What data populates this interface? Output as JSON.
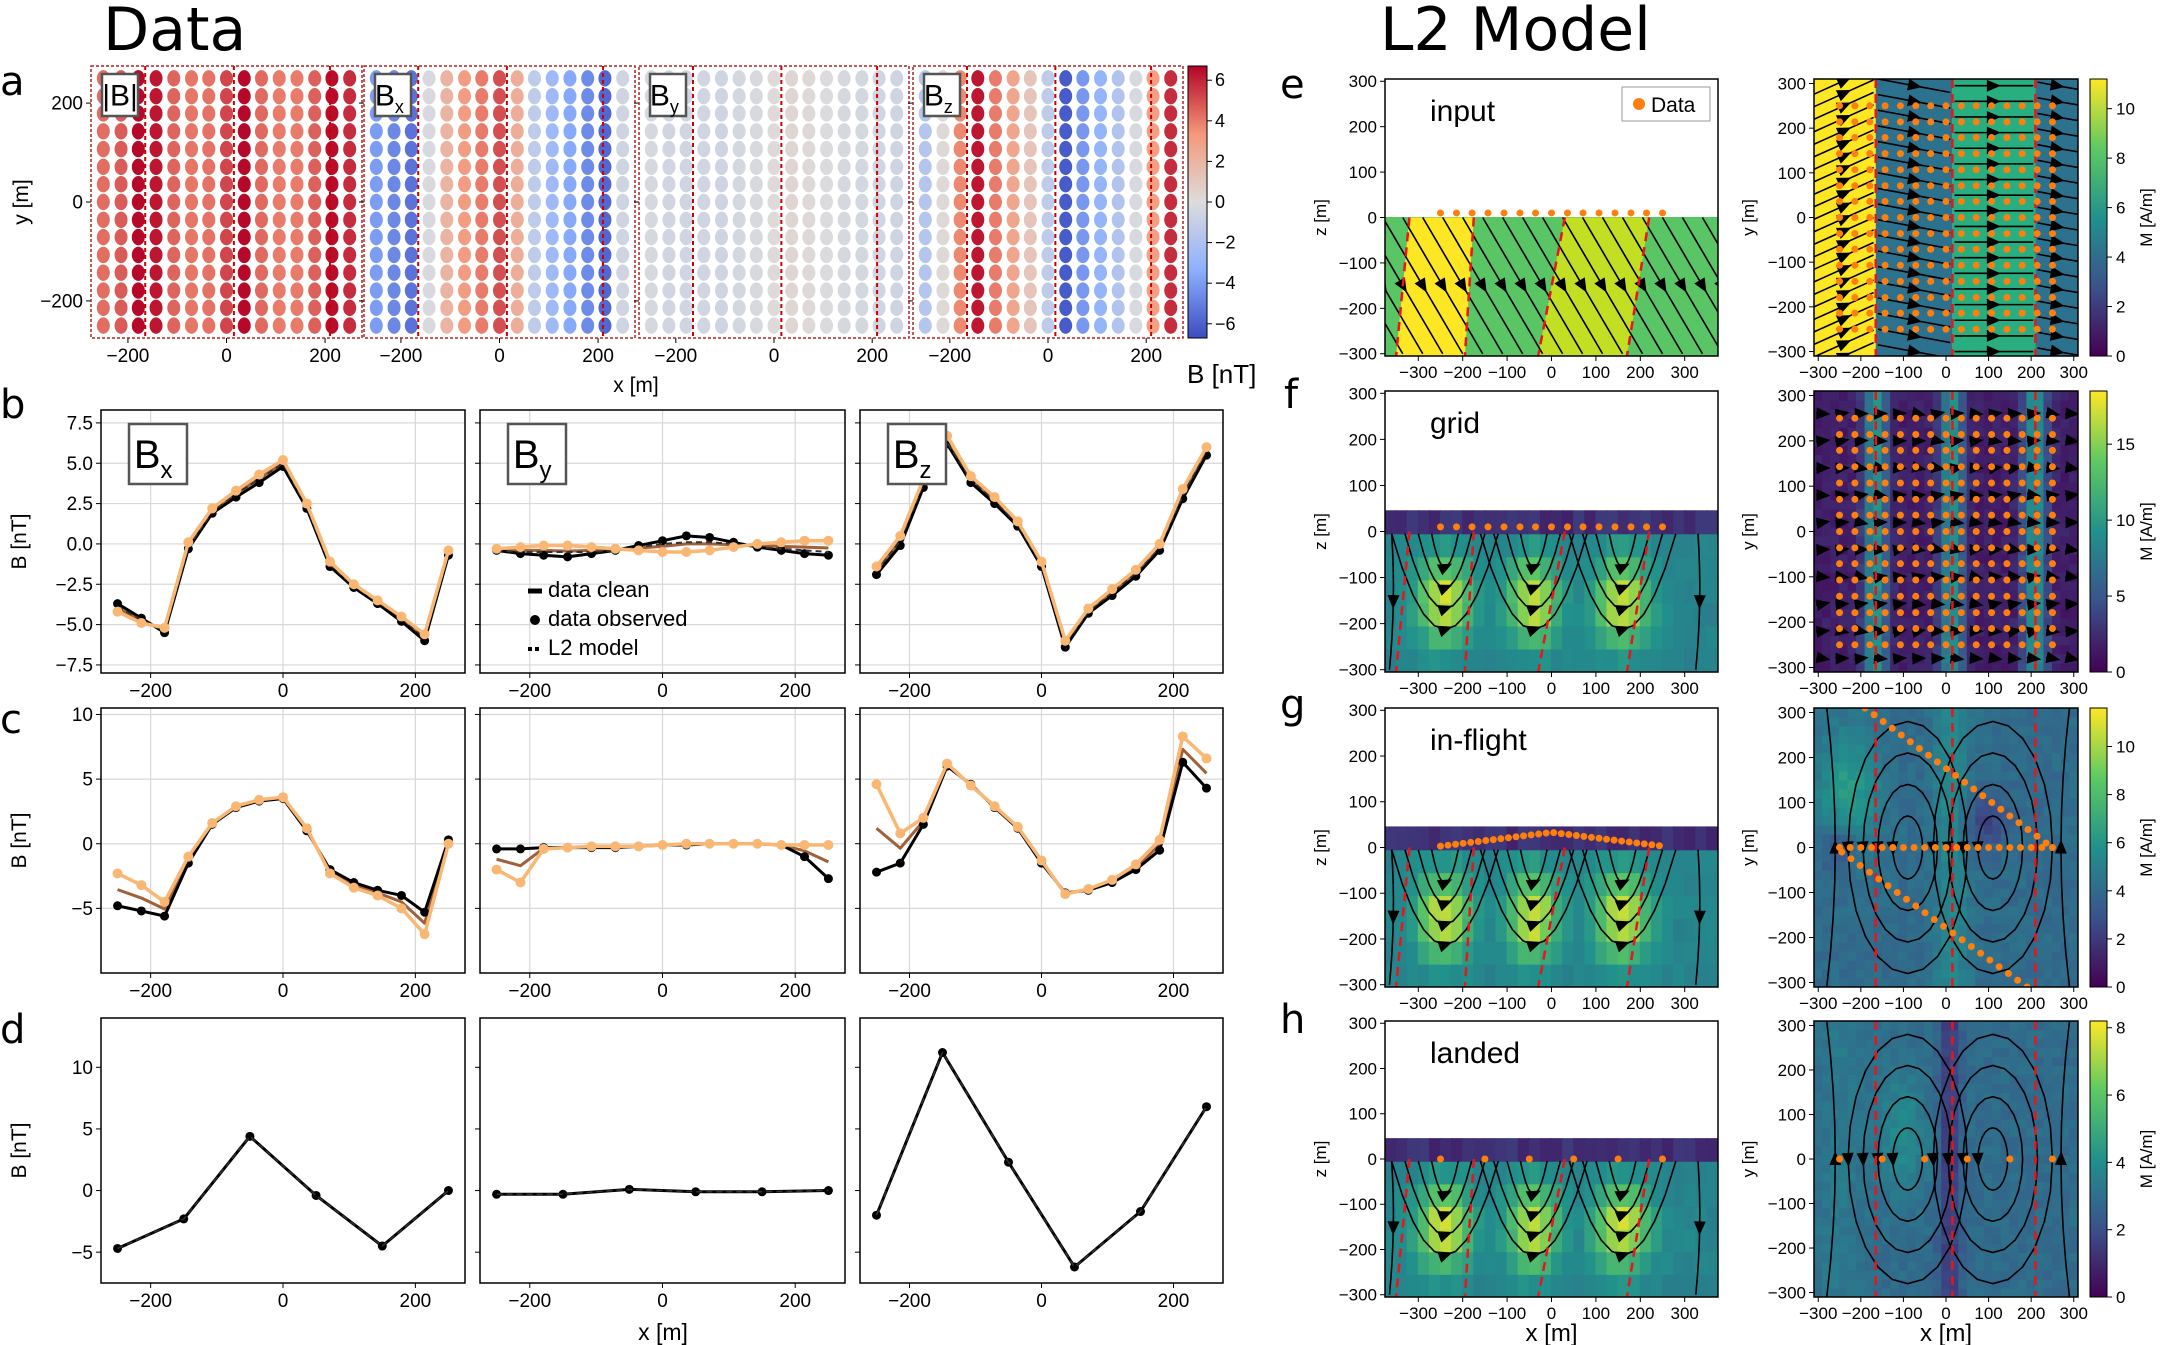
{
  "titles": {
    "data": "Data",
    "model": "L2 Model"
  },
  "panel_letters": [
    "a",
    "b",
    "c",
    "d",
    "e",
    "f",
    "g",
    "h"
  ],
  "colors": {
    "clean": "#000000",
    "observed": "#f9b773",
    "survey_dots": "#ff7f0e",
    "boundary": "#e8151b",
    "frame_a": "#b22222"
  },
  "chart_data": [
    {
      "id": "a",
      "type": "heatmap",
      "xlabel": "x [m]",
      "ylabel": "y [m]",
      "colorbar_label": "B [nT]",
      "colormap": "coolwarm",
      "clim": [
        -6.7,
        6.7
      ],
      "colorbar_ticks": [
        6,
        4,
        2,
        0,
        -2,
        -4,
        -6
      ],
      "xticks": [
        -200,
        0,
        200
      ],
      "yticks": [
        200,
        0,
        -200
      ],
      "xlim": [
        -275,
        275
      ],
      "ylim": [
        -275,
        275
      ],
      "x": [
        -250,
        -214,
        -179,
        -143,
        -107,
        -71,
        -36,
        0,
        36,
        71,
        107,
        143,
        179,
        214,
        250
      ],
      "y": [
        -250,
        -214,
        -179,
        -143,
        -107,
        -71,
        -36,
        0,
        36,
        71,
        107,
        143,
        179,
        214,
        250
      ],
      "boundaries_x": [
        -165,
        15,
        210
      ],
      "panels": [
        {
          "label": "|B|",
          "sub": "",
          "values": [
            4.3,
            4.7,
            6.6,
            6.3,
            4.5,
            4.1,
            4.2,
            5.2,
            6.6,
            4.4,
            4.0,
            4.0,
            4.6,
            6.5,
            5.8
          ]
        },
        {
          "label": "B",
          "sub": "x",
          "values": [
            -4.0,
            -4.7,
            -5.4,
            -0.2,
            2.0,
            3.1,
            4.0,
            5.0,
            2.3,
            -1.3,
            -2.6,
            -3.6,
            -4.6,
            -5.8,
            -0.6
          ]
        },
        {
          "label": "B",
          "sub": "y",
          "values": [
            -0.3,
            -0.5,
            -0.5,
            -0.5,
            -0.6,
            -0.4,
            -0.2,
            0.1,
            0.3,
            0.2,
            -0.1,
            -0.3,
            -0.4,
            -0.5,
            -0.6
          ]
        },
        {
          "label": "B",
          "sub": "z",
          "values": [
            -1.7,
            0.2,
            3.7,
            6.3,
            4.0,
            2.7,
            1.2,
            -1.3,
            -6.2,
            -4.2,
            -3.0,
            -1.8,
            -0.2,
            3.0,
            5.8
          ]
        }
      ]
    },
    {
      "id": "b",
      "type": "line",
      "ylabel": "B [nT]",
      "xlim": [
        -275,
        275
      ],
      "ylim": [
        -8,
        8.3
      ],
      "xticks": [
        -200,
        0,
        200
      ],
      "yticks": [
        -7.5,
        -5.0,
        -2.5,
        0.0,
        2.5,
        5.0,
        7.5
      ],
      "ytick_decimals": 1,
      "grid": true,
      "legend": {
        "placement": "center",
        "entries": [
          "data clean",
          "data observed",
          "L2 model"
        ]
      },
      "x": [
        -250,
        -214,
        -179,
        -143,
        -107,
        -71,
        -36,
        0,
        36,
        71,
        107,
        143,
        179,
        214,
        250
      ],
      "panels": [
        {
          "label": "B",
          "sub": "x",
          "clean": [
            -3.7,
            -4.6,
            -5.5,
            -0.3,
            1.9,
            2.9,
            3.8,
            4.8,
            2.2,
            -1.4,
            -2.7,
            -3.7,
            -4.8,
            -6.0,
            -0.7
          ],
          "observed": [
            -4.2,
            -4.9,
            -5.2,
            0.1,
            2.2,
            3.3,
            4.3,
            5.2,
            2.5,
            -1.1,
            -2.5,
            -3.5,
            -4.5,
            -5.6,
            -0.4
          ],
          "model": [
            -3.9,
            -4.7,
            -5.4,
            -0.2,
            2.0,
            3.1,
            4.0,
            5.0,
            2.3,
            -1.3,
            -2.6,
            -3.6,
            -4.6,
            -5.8,
            -0.6
          ]
        },
        {
          "label": "B",
          "sub": "y",
          "clean": [
            -0.4,
            -0.6,
            -0.7,
            -0.8,
            -0.6,
            -0.4,
            -0.1,
            0.2,
            0.5,
            0.4,
            0.1,
            -0.2,
            -0.4,
            -0.6,
            -0.7
          ],
          "observed": [
            -0.3,
            -0.2,
            -0.1,
            -0.1,
            -0.2,
            -0.3,
            -0.4,
            -0.5,
            -0.5,
            -0.4,
            -0.2,
            0.0,
            0.1,
            0.2,
            0.2
          ],
          "model": [
            -0.4,
            -0.5,
            -0.5,
            -0.5,
            -0.5,
            -0.4,
            -0.2,
            0.0,
            0.1,
            0.1,
            0.0,
            -0.2,
            -0.3,
            -0.4,
            -0.5
          ]
        },
        {
          "label": "B",
          "sub": "z",
          "clean": [
            -1.9,
            -0.1,
            3.5,
            6.2,
            3.8,
            2.5,
            1.1,
            -1.4,
            -6.4,
            -4.3,
            -3.2,
            -2.0,
            -0.4,
            2.8,
            5.5
          ],
          "observed": [
            -1.4,
            0.5,
            4.0,
            6.7,
            4.2,
            2.9,
            1.4,
            -1.1,
            -6.0,
            -4.0,
            -2.8,
            -1.6,
            0.0,
            3.4,
            6.0
          ],
          "model": [
            -1.7,
            0.2,
            3.7,
            6.3,
            4.0,
            2.7,
            1.2,
            -1.3,
            -6.2,
            -4.2,
            -3.0,
            -1.8,
            -0.2,
            3.0,
            5.8
          ]
        }
      ]
    },
    {
      "id": "c",
      "type": "line",
      "ylabel": "B [nT]",
      "xlim": [
        -275,
        275
      ],
      "ylim": [
        -10,
        10.5
      ],
      "xticks": [
        -200,
        0,
        200
      ],
      "yticks": [
        -5,
        0,
        5,
        10
      ],
      "ytick_decimals": 0,
      "grid": true,
      "x": [
        -250,
        -214,
        -179,
        -143,
        -107,
        -71,
        -36,
        0,
        36,
        71,
        107,
        143,
        179,
        214,
        250
      ],
      "panels": [
        {
          "clean": [
            -4.8,
            -5.2,
            -5.6,
            -1.5,
            1.5,
            2.8,
            3.3,
            3.5,
            1.0,
            -2.0,
            -3.0,
            -3.6,
            -4.0,
            -5.3,
            0.3
          ],
          "observed": [
            -2.3,
            -3.2,
            -4.5,
            -1.0,
            1.6,
            2.9,
            3.4,
            3.6,
            1.2,
            -2.3,
            -3.4,
            -4.0,
            -5.0,
            -7.0,
            0.0
          ]
        },
        {
          "clean": [
            -0.4,
            -0.4,
            -0.3,
            -0.3,
            -0.3,
            -0.3,
            -0.2,
            -0.1,
            -0.1,
            0.0,
            0.0,
            0.0,
            -0.1,
            -1.0,
            -2.7
          ],
          "observed": [
            -2.0,
            -3.0,
            -0.4,
            -0.3,
            -0.2,
            -0.2,
            -0.2,
            -0.1,
            0.0,
            0.0,
            0.0,
            0.0,
            -0.1,
            -0.1,
            -0.1
          ]
        },
        {
          "clean": [
            -2.2,
            -1.5,
            1.5,
            6.0,
            4.6,
            2.8,
            1.2,
            -1.5,
            -3.8,
            -3.6,
            -3.0,
            -2.0,
            -0.5,
            6.3,
            4.3
          ],
          "observed": [
            4.6,
            0.8,
            2.0,
            6.2,
            4.5,
            2.9,
            1.3,
            -1.3,
            -3.9,
            -3.5,
            -2.8,
            -1.6,
            0.3,
            8.3,
            6.6
          ]
        }
      ]
    },
    {
      "id": "d",
      "type": "line",
      "ylabel": "B [nT]",
      "xlabel": "x [m]",
      "xlim": [
        -275,
        275
      ],
      "ylim": [
        -7.5,
        14
      ],
      "xticks": [
        -200,
        0,
        200
      ],
      "yticks": [
        -5,
        0,
        5,
        10
      ],
      "ytick_decimals": 0,
      "grid": false,
      "x": [
        -250,
        -150,
        -50,
        50,
        150,
        250
      ],
      "panels": [
        {
          "clean": [
            -4.7,
            -2.3,
            4.4,
            -0.4,
            -4.5,
            0.0
          ]
        },
        {
          "clean": [
            -0.3,
            -0.3,
            0.1,
            -0.1,
            -0.1,
            0.0
          ]
        },
        {
          "clean": [
            -2.0,
            11.2,
            2.3,
            -6.2,
            -1.7,
            6.8
          ]
        }
      ]
    }
  ],
  "model": {
    "xz_xlim": [
      -375,
      375
    ],
    "xy_lim": [
      -310,
      310
    ],
    "zlim": [
      -305,
      305
    ],
    "ticks": [
      -300,
      -200,
      -100,
      0,
      100,
      200,
      300
    ],
    "xz_ylabel": "z [m]",
    "xy_ylabel": "y [m]",
    "xlabel": "x [m]",
    "colorbar_label": "M [A/m]",
    "colormap": "viridis",
    "legend_label": "Data",
    "dyke_boundaries_xz": [
      [
        -320,
        -350
      ],
      [
        -175,
        -195
      ],
      [
        30,
        -30
      ],
      [
        220,
        170
      ]
    ],
    "dyke_boundaries_xy": [
      -165,
      15,
      210
    ],
    "survey_x": [
      -250,
      -214,
      -179,
      -143,
      -107,
      -71,
      -36,
      0,
      36,
      71,
      107,
      143,
      179,
      214,
      250
    ],
    "survey_y": [
      -250,
      -214,
      -179,
      -143,
      -107,
      -71,
      -36,
      0,
      36,
      71,
      107,
      143,
      179,
      214,
      250
    ],
    "panels": [
      {
        "letter": "e",
        "label": "input",
        "vmax": 11.2,
        "cbar_ticks": [
          0,
          2,
          4,
          6,
          8,
          10
        ],
        "survey": "grid"
      },
      {
        "letter": "f",
        "label": "grid",
        "vmax": 18.5,
        "cbar_ticks": [
          0,
          5,
          10,
          15
        ],
        "survey": "grid"
      },
      {
        "letter": "g",
        "label": "in-flight",
        "vmax": 11.6,
        "cbar_ticks": [
          0,
          2,
          4,
          6,
          8,
          10
        ],
        "survey": "flight",
        "flight_peak_altitude": 30,
        "flight_lines_xy": [
          [
            [
              -250,
              0
            ],
            [
              250,
              0
            ]
          ],
          [
            [
              -190,
              310
            ],
            [
              235,
              10
            ]
          ],
          [
            [
              -245,
              -10
            ],
            [
              190,
              -310
            ]
          ]
        ]
      },
      {
        "letter": "h",
        "label": "landed",
        "vmax": 8.2,
        "cbar_ticks": [
          0,
          2,
          4,
          6,
          8
        ],
        "survey": "landed",
        "landed_x": [
          -250,
          -150,
          -50,
          50,
          150,
          250
        ]
      }
    ]
  }
}
